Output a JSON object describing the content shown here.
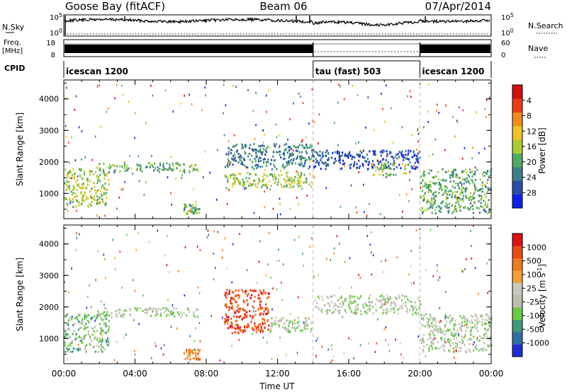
{
  "header": {
    "station": "Goose Bay (fitACF)",
    "beam": "Beam 06",
    "date": "07/Apr/2014"
  },
  "status_panels": {
    "nsky_label": "N.Sky",
    "nsearch_label": "N.Search",
    "nsky_tick_top": "10^5",
    "nsky_tick_bottom": "10^0",
    "nsearch_tick_top": "10^5",
    "nsearch_tick_bottom": "10^0",
    "freq_label": "Freq.",
    "freq_unit": "[MHz]",
    "freq_tick_top": "18",
    "freq_tick_bottom": "8",
    "nave_label": "Nave",
    "nave_tick_top": "60",
    "nave_tick_bottom": "0",
    "cpid_label": "CPID",
    "cpid_segments": [
      {
        "label": "icescan 1200",
        "start": 0,
        "end": 14
      },
      {
        "label": "tau (fast) 503",
        "start": 14,
        "end": 20
      },
      {
        "label": "icescan 1200",
        "start": 20,
        "end": 24
      }
    ]
  },
  "chart_data": [
    {
      "type": "heatmap",
      "name": "power-panel",
      "ylabel": "Slant Range [km]",
      "xlabel": "",
      "xlim": [
        0,
        24
      ],
      "ylim": [
        200,
        4600
      ],
      "y_ticks": [
        "1000",
        "2000",
        "3000",
        "4000"
      ],
      "colorbar": {
        "label": "Power [dB]",
        "colors": [
          "#0f1ff0",
          "#2a4ea8",
          "#3f7f8a",
          "#4faa62",
          "#aacc33",
          "#f2c22a",
          "#f28a1a",
          "#ee3a14",
          "#d60e0e"
        ],
        "ticks": [
          "4",
          "8",
          "12",
          "16",
          "20",
          "24",
          "28"
        ]
      },
      "echo_regions": [
        {
          "t0": 0.0,
          "t1": 2.5,
          "r0": 600,
          "r1": 1800,
          "level": 4
        },
        {
          "t0": 1.8,
          "t1": 7.5,
          "r0": 1700,
          "r1": 2000,
          "level": 3
        },
        {
          "t0": 6.7,
          "t1": 7.6,
          "r0": 350,
          "r1": 700,
          "level": 3
        },
        {
          "t0": 9.0,
          "t1": 14.0,
          "r0": 1200,
          "r1": 1700,
          "level": 4
        },
        {
          "t0": 9.0,
          "t1": 14.0,
          "r0": 1800,
          "r1": 2600,
          "level": 2
        },
        {
          "t0": 14.0,
          "t1": 20.0,
          "r0": 1800,
          "r1": 2400,
          "level": 1
        },
        {
          "t0": 17.3,
          "t1": 19.2,
          "r0": 1600,
          "r1": 2000,
          "level": 4
        },
        {
          "t0": 20.0,
          "t1": 24.0,
          "r0": 400,
          "r1": 1800,
          "level": 3
        }
      ]
    },
    {
      "type": "heatmap",
      "name": "velocity-panel",
      "ylabel": "Slant Range [km]",
      "xlabel": "Time UT",
      "xlim": [
        0,
        24
      ],
      "ylim": [
        200,
        4600
      ],
      "x_ticks": [
        "00:00",
        "04:00",
        "08:00",
        "12:00",
        "16:00",
        "20:00",
        "00:00"
      ],
      "y_ticks": [
        "1000",
        "2000",
        "3000",
        "4000"
      ],
      "colorbar": {
        "label": "Velocity [m s^-1]",
        "colors": [
          "#1f2fd8",
          "#2f6fa8",
          "#3f9a7a",
          "#66cc44",
          "#bdbdb0",
          "#c8c8c0",
          "#f2a033",
          "#ef7a1a",
          "#ec4a14",
          "#e01010"
        ],
        "ticks": [
          "1000",
          "500",
          "100",
          "25",
          "-25",
          "-100",
          "-500",
          "-1000"
        ]
      },
      "echo_regions": [
        {
          "t0": 0.0,
          "t1": 2.5,
          "r0": 600,
          "r1": 1800,
          "level": 3
        },
        {
          "t0": 1.8,
          "t1": 7.5,
          "r0": 1700,
          "r1": 2000,
          "level": 4
        },
        {
          "t0": 6.7,
          "t1": 7.6,
          "r0": 350,
          "r1": 700,
          "level": 7
        },
        {
          "t0": 9.0,
          "t1": 11.5,
          "r0": 1200,
          "r1": 2600,
          "level": 8
        },
        {
          "t0": 11.5,
          "t1": 14.0,
          "r0": 1200,
          "r1": 1700,
          "level": 4
        },
        {
          "t0": 14.0,
          "t1": 20.0,
          "r0": 1800,
          "r1": 2400,
          "level": 4
        },
        {
          "t0": 20.0,
          "t1": 24.0,
          "r0": 600,
          "r1": 1800,
          "level": 4
        }
      ]
    }
  ]
}
